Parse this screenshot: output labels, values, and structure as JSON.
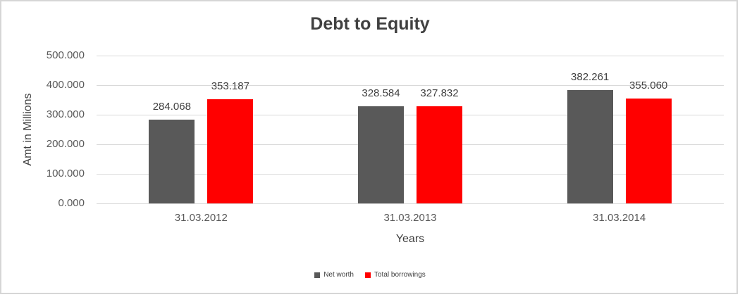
{
  "chart_data": {
    "type": "bar",
    "title": "Debt to Equity",
    "xlabel": "Years",
    "ylabel": "Amt in Millions",
    "categories": [
      "31.03.2012",
      "31.03.2013",
      "31.03.2014"
    ],
    "series": [
      {
        "name": "Net worth",
        "color": "#595959",
        "values": [
          284.068,
          328.584,
          382.261
        ],
        "value_labels": [
          "284.068",
          "328.584",
          "382.261"
        ]
      },
      {
        "name": "Total borrowings",
        "color": "#FF0000",
        "values": [
          353.187,
          327.832,
          355.06
        ],
        "value_labels": [
          "353.187",
          "327.832",
          "355.060"
        ]
      }
    ],
    "ylim": [
      0,
      500
    ],
    "ytick_step": 100,
    "ytick_labels": [
      "0.000",
      "100.000",
      "200.000",
      "300.000",
      "400.000",
      "500.000"
    ],
    "grid": true,
    "legend_position": "bottom",
    "legend": [
      "Net worth",
      "Total borrowings"
    ]
  },
  "style": {
    "gridline_color": "#D9D9D9",
    "frame_border_color": "#D6D6D6",
    "title_color": "#404040",
    "data_label_color": "#404040",
    "tick_label_color": "#595959",
    "net_worth_color": "#595959",
    "total_borrowings_color": "#FF0000",
    "background_color": "#FFFFFF"
  }
}
